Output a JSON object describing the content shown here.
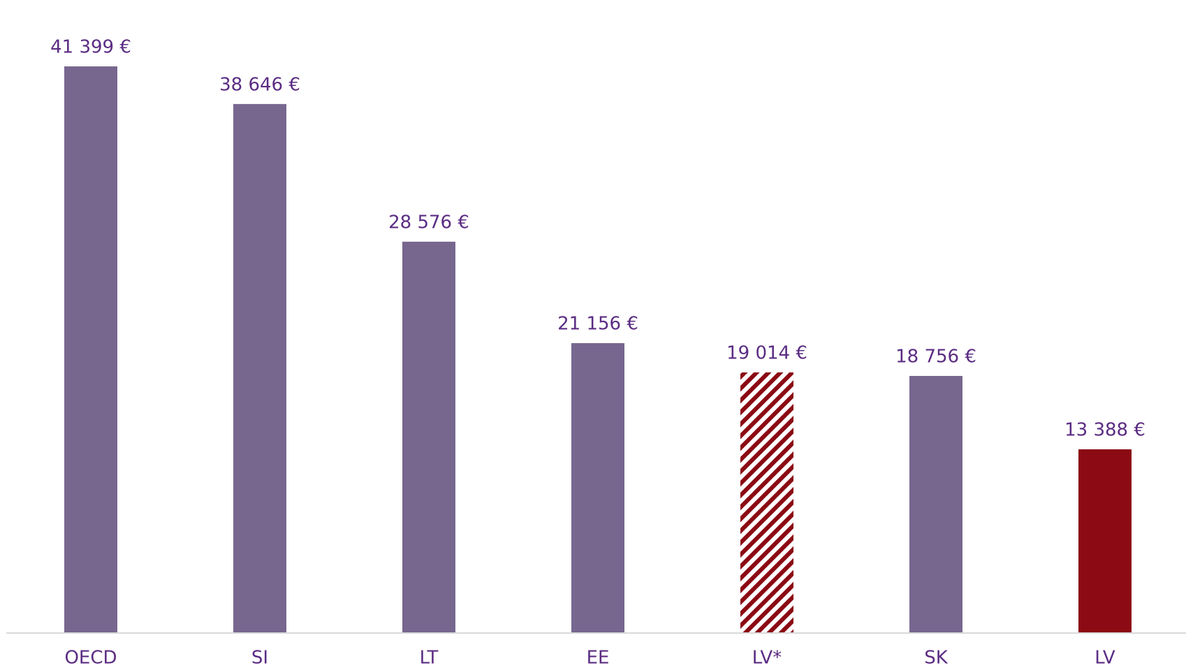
{
  "chart_data": {
    "type": "bar",
    "categories": [
      "OECD",
      "SI",
      "LT",
      "EE",
      "LV*",
      "SK",
      "LV"
    ],
    "values": [
      41399,
      38646,
      28576,
      21156,
      19014,
      18756,
      13388
    ],
    "value_labels": [
      "41 399 €",
      "38 646 €",
      "28 576 €",
      "21 156 €",
      "19 014 €",
      "18 756 €",
      "13 388 €"
    ],
    "colors": [
      "#77678f",
      "#77678f",
      "#77678f",
      "#77678f",
      "#8b0a14",
      "#77678f",
      "#8b0a14"
    ],
    "hatch": [
      false,
      false,
      false,
      false,
      true,
      false,
      false
    ]
  }
}
